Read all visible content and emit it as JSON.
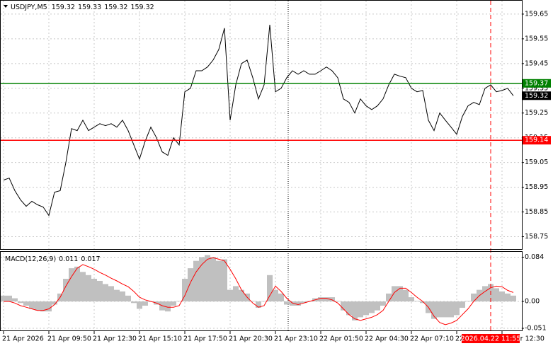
{
  "chart_data": [
    {
      "type": "line",
      "title": "USDJPY,M5",
      "ohlc": [
        159.32,
        159.33,
        159.32,
        159.32
      ],
      "color": "#000000",
      "values": [
        158.979,
        158.987,
        158.936,
        158.899,
        158.873,
        158.893,
        158.879,
        158.87,
        158.836,
        158.93,
        158.936,
        159.05,
        159.187,
        159.179,
        159.221,
        159.179,
        159.193,
        159.207,
        159.199,
        159.207,
        159.193,
        159.221,
        159.179,
        159.121,
        159.064,
        159.136,
        159.193,
        159.15,
        159.093,
        159.079,
        159.15,
        159.121,
        159.336,
        159.35,
        159.421,
        159.421,
        159.436,
        159.464,
        159.507,
        159.593,
        159.221,
        159.364,
        159.45,
        159.464,
        159.393,
        159.307,
        159.364,
        159.607,
        159.336,
        159.35,
        159.393,
        159.421,
        159.407,
        159.421,
        159.407,
        159.407,
        159.421,
        159.436,
        159.421,
        159.393,
        159.307,
        159.293,
        159.25,
        159.307,
        159.279,
        159.264,
        159.279,
        159.307,
        159.364,
        159.407,
        159.399,
        159.393,
        159.35,
        159.336,
        159.341,
        159.221,
        159.179,
        159.25,
        159.221,
        159.193,
        159.164,
        159.236,
        159.279,
        159.293,
        159.284,
        159.35,
        159.364,
        159.336,
        159.341,
        159.35,
        159.32
      ],
      "xlim": [
        0,
        91.5
      ],
      "xticks": [
        {
          "value": 0,
          "label": "21 Apr 2026"
        },
        {
          "value": 8,
          "label": "21 Apr 09:50"
        },
        {
          "value": 16,
          "label": "21 Apr 12:30"
        },
        {
          "value": 24,
          "label": "21 Apr 15:10"
        },
        {
          "value": 32,
          "label": "21 Apr 17:50"
        },
        {
          "value": 40,
          "label": "21 Apr 20:30"
        },
        {
          "value": 48,
          "label": "21 Apr 23:10"
        },
        {
          "value": 56,
          "label": "22 Apr 01:50"
        },
        {
          "value": 64,
          "label": "22 Apr 04:30"
        },
        {
          "value": 72,
          "label": "22 Apr 07:10"
        },
        {
          "value": 80,
          "label": "22 Apr 09:50"
        },
        {
          "value": 88,
          "label": "22 Apr 12:30"
        }
      ],
      "ylim": [
        158.7,
        159.707
      ],
      "yticks": [
        159.65,
        159.55,
        159.45,
        159.35,
        159.25,
        159.15,
        159.05,
        158.95,
        158.85,
        158.75
      ],
      "grid": true,
      "levels": [
        {
          "value": 159.37,
          "color": "#008000"
        },
        {
          "value": 159.14,
          "color": "#ff0000"
        }
      ],
      "cursor": {
        "value": 86,
        "label": "2026.04.22 11:55",
        "color": "#ff0000"
      }
    },
    {
      "type": "bar",
      "title": "MACD(12,26,9)",
      "readout": [
        0.011,
        0.017
      ],
      "series": [
        {
          "type": "bar",
          "color": "#c0c0c0",
          "values": [
            0.011,
            0.011,
            0.006,
            -0.003,
            -0.008,
            -0.014,
            -0.017,
            -0.019,
            -0.019,
            -0.006,
            0.015,
            0.043,
            0.063,
            0.066,
            0.056,
            0.05,
            0.043,
            0.039,
            0.033,
            0.029,
            0.022,
            0.019,
            0.011,
            -0.003,
            -0.014,
            -0.008,
            0,
            -0.006,
            -0.017,
            -0.019,
            -0.008,
            0.001,
            0.043,
            0.063,
            0.077,
            0.084,
            0.088,
            0.084,
            0.077,
            0.08,
            0.022,
            0.029,
            0.022,
            0.015,
            0.001,
            -0.012,
            0.001,
            0.05,
            0.022,
            0.015,
            -0.006,
            -0.008,
            -0.008,
            -0.003,
            0.001,
            0.006,
            0.008,
            0.008,
            0.008,
            0.001,
            -0.017,
            -0.026,
            -0.036,
            -0.03,
            -0.026,
            -0.022,
            -0.017,
            -0.008,
            0.015,
            0.029,
            0.029,
            0.022,
            0.008,
            0.001,
            -0.003,
            -0.022,
            -0.033,
            -0.03,
            -0.03,
            -0.03,
            -0.026,
            -0.012,
            0.001,
            0.015,
            0.022,
            0.029,
            0.033,
            0.025,
            0.019,
            0.015,
            0.011
          ]
        },
        {
          "type": "line",
          "color": "#ff0000",
          "values": [
            0,
            0,
            -0.003,
            -0.008,
            -0.011,
            -0.014,
            -0.017,
            -0.017,
            -0.014,
            -0.006,
            0.008,
            0.029,
            0.047,
            0.063,
            0.07,
            0.066,
            0.061,
            0.055,
            0.05,
            0.044,
            0.039,
            0.033,
            0.028,
            0.019,
            0.008,
            0.003,
            0,
            -0.003,
            -0.008,
            -0.011,
            -0.011,
            -0.008,
            0.011,
            0.036,
            0.056,
            0.07,
            0.08,
            0.083,
            0.08,
            0.077,
            0.061,
            0.043,
            0.022,
            0.008,
            -0.003,
            -0.011,
            -0.008,
            0.011,
            0.029,
            0.019,
            0.006,
            -0.003,
            -0.006,
            -0.003,
            0,
            0.003,
            0.006,
            0.006,
            0.003,
            -0.003,
            -0.014,
            -0.025,
            -0.033,
            -0.036,
            -0.033,
            -0.03,
            -0.025,
            -0.017,
            0,
            0.017,
            0.025,
            0.025,
            0.017,
            0.008,
            0,
            -0.011,
            -0.028,
            -0.04,
            -0.044,
            -0.041,
            -0.036,
            -0.025,
            -0.014,
            0,
            0.011,
            0.019,
            0.026,
            0.029,
            0.028,
            0.021,
            0.017
          ]
        }
      ],
      "ylim": [
        -0.055,
        0.094
      ],
      "yticks": [
        0.084,
        {
          "value": 0,
          "label": "0.00"
        },
        -0.051
      ],
      "grid": true
    }
  ]
}
